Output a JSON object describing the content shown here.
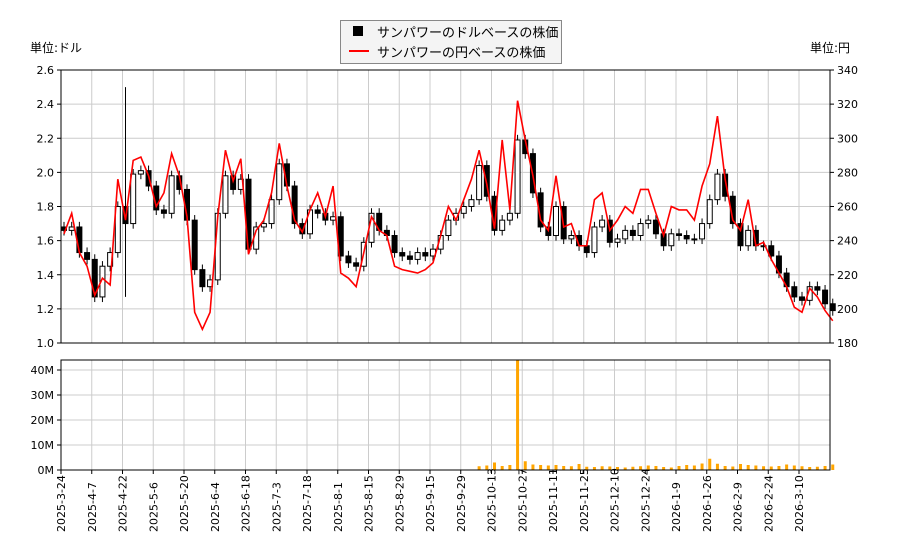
{
  "chart_data": {
    "type": "candlestick+line+bar",
    "legend": {
      "placement": "top-center",
      "items": [
        "サンパワーのドルベースの株価",
        "サンパワーの円ベースの株価"
      ]
    },
    "left_unit": "単位:ドル",
    "right_unit": "単位:円",
    "price_ylim": [
      1.0,
      2.6
    ],
    "price_ticks": [
      "1.0",
      "1.2",
      "1.4",
      "1.6",
      "1.8",
      "2.0",
      "2.2",
      "2.4",
      "2.6"
    ],
    "yen_ylim": [
      180,
      340
    ],
    "yen_ticks": [
      "180",
      "200",
      "220",
      "240",
      "260",
      "280",
      "300",
      "320",
      "340"
    ],
    "volume_ylim": [
      0,
      44
    ],
    "volume_ticks": [
      "0M",
      "10M",
      "20M",
      "30M",
      "40M"
    ],
    "grid": true,
    "x_ticks": [
      "2025-3-24",
      "2025-4-7",
      "2025-4-22",
      "2025-5-6",
      "2025-5-20",
      "2025-6-4",
      "2025-6-18",
      "2025-7-3",
      "2025-7-18",
      "2025-8-1",
      "2025-8-15",
      "2025-8-29",
      "2025-9-15",
      "2025-9-29",
      "2025-10-13",
      "2025-10-27",
      "2025-11-11",
      "2025-11-25",
      "2025-12-10",
      "2025-12-24",
      "2026-1-9",
      "2026-1-26",
      "2026-2-9",
      "2026-2-24",
      "2026-3-10"
    ],
    "colors": {
      "candle": "#000000",
      "yen_line": "#ff0000",
      "volume": "#ffa500",
      "grid": "#cccccc"
    },
    "usd_close": [
      1.66,
      1.68,
      1.53,
      1.49,
      1.27,
      1.45,
      1.53,
      1.8,
      1.7,
      1.99,
      2.01,
      1.92,
      1.78,
      1.76,
      1.98,
      1.9,
      1.72,
      1.43,
      1.33,
      1.37,
      1.76,
      1.98,
      1.9,
      1.96,
      1.55,
      1.68,
      1.7,
      1.84,
      2.05,
      1.92,
      1.7,
      1.64,
      1.78,
      1.76,
      1.72,
      1.74,
      1.51,
      1.47,
      1.45,
      1.59,
      1.76,
      1.66,
      1.63,
      1.53,
      1.51,
      1.49,
      1.53,
      1.51,
      1.55,
      1.63,
      1.72,
      1.76,
      1.8,
      1.84,
      2.04,
      1.86,
      1.66,
      1.72,
      1.76,
      2.19,
      2.11,
      1.88,
      1.68,
      1.63,
      1.8,
      1.61,
      1.63,
      1.57,
      1.53,
      1.68,
      1.72,
      1.59,
      1.61,
      1.66,
      1.63,
      1.7,
      1.72,
      1.64,
      1.57,
      1.64,
      1.63,
      1.61,
      1.61,
      1.7,
      1.84,
      1.99,
      1.86,
      1.7,
      1.57,
      1.66,
      1.57,
      1.57,
      1.51,
      1.41,
      1.33,
      1.27,
      1.25,
      1.33,
      1.31,
      1.23,
      1.19
    ],
    "jpy_close": [
      244,
      256,
      233,
      225,
      208,
      218,
      214,
      276,
      252,
      287,
      289,
      278,
      260,
      268,
      291,
      278,
      254,
      198,
      188,
      198,
      254,
      293,
      275,
      288,
      232,
      246,
      252,
      268,
      297,
      272,
      252,
      245,
      258,
      268,
      254,
      272,
      221,
      218,
      213,
      233,
      254,
      246,
      243,
      225,
      223,
      222,
      221,
      223,
      227,
      243,
      260,
      252,
      264,
      276,
      293,
      273,
      247,
      299,
      258,
      322,
      299,
      278,
      252,
      246,
      278,
      248,
      250,
      237,
      237,
      264,
      268,
      246,
      252,
      260,
      256,
      270,
      270,
      256,
      243,
      260,
      258,
      258,
      252,
      272,
      285,
      313,
      276,
      252,
      246,
      264,
      237,
      239,
      229,
      221,
      213,
      201,
      198,
      212,
      207,
      199,
      193
    ],
    "candle_spike": {
      "date": "2025-4-22",
      "high": 2.5,
      "low": 1.27
    },
    "volume_millions": [
      0,
      0,
      0,
      0,
      0,
      0,
      0,
      0,
      0,
      0,
      0,
      0,
      0,
      0,
      0,
      0,
      0,
      0,
      0,
      0,
      0,
      0,
      0,
      0,
      0,
      0,
      0,
      0,
      0,
      0,
      0,
      0,
      0,
      0,
      0,
      0,
      0,
      0,
      0,
      0,
      0,
      0,
      0,
      0,
      0,
      0,
      0,
      0,
      0,
      0,
      0,
      0,
      0,
      0,
      1.5,
      1.8,
      3.0,
      1.6,
      2.0,
      44,
      3.5,
      2.2,
      2.0,
      1.8,
      2.0,
      1.6,
      1.5,
      2.4,
      1.3,
      1.2,
      1.5,
      1.4,
      1.2,
      1.0,
      1.3,
      1.5,
      1.8,
      1.6,
      1.2,
      1.0,
      1.6,
      2.0,
      1.8,
      2.6,
      4.5,
      2.5,
      1.6,
      1.4,
      2.4,
      2.0,
      1.8,
      1.5,
      1.4,
      1.6,
      2.2,
      1.8,
      1.5,
      1.2,
      1.3,
      1.6,
      2.2
    ]
  }
}
